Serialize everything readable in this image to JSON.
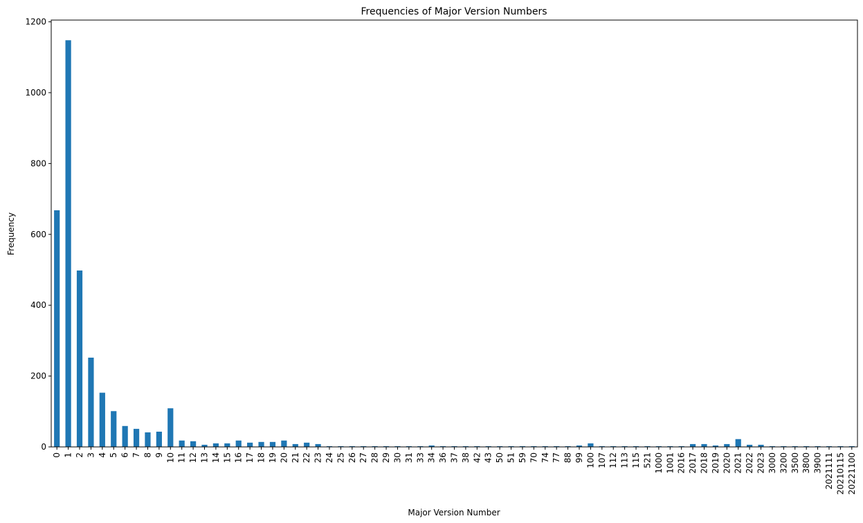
{
  "chart_data": {
    "type": "bar",
    "title": "Frequencies of Major Version Numbers",
    "xlabel": "Major Version Number",
    "ylabel": "Frequency",
    "ylim": [
      0,
      1205
    ],
    "yticks": [
      0,
      200,
      400,
      600,
      800,
      1000,
      1200
    ],
    "grid": false,
    "bar_color": "#1f77b4",
    "categories": [
      "0",
      "1",
      "2",
      "3",
      "4",
      "5",
      "6",
      "7",
      "8",
      "9",
      "10",
      "11",
      "12",
      "13",
      "14",
      "15",
      "16",
      "17",
      "18",
      "19",
      "20",
      "21",
      "22",
      "23",
      "24",
      "25",
      "26",
      "27",
      "28",
      "29",
      "30",
      "31",
      "33",
      "34",
      "36",
      "37",
      "38",
      "42",
      "43",
      "50",
      "51",
      "59",
      "70",
      "74",
      "77",
      "88",
      "99",
      "100",
      "107",
      "112",
      "113",
      "115",
      "521",
      "1000",
      "1001",
      "2016",
      "2017",
      "2018",
      "2019",
      "2020",
      "2021",
      "2022",
      "2023",
      "3000",
      "3200",
      "3500",
      "3800",
      "3900",
      "2021111",
      "20210115",
      "20221100"
    ],
    "values": [
      668,
      1148,
      498,
      252,
      153,
      101,
      59,
      51,
      41,
      43,
      109,
      18,
      16,
      6,
      10,
      10,
      18,
      12,
      14,
      14,
      18,
      8,
      12,
      8,
      2,
      2,
      2,
      2,
      2,
      2,
      2,
      2,
      2,
      4,
      2,
      2,
      2,
      2,
      2,
      2,
      2,
      2,
      2,
      2,
      2,
      2,
      4,
      10,
      2,
      2,
      2,
      2,
      2,
      2,
      2,
      2,
      8,
      8,
      4,
      8,
      22,
      6,
      6,
      2,
      2,
      2,
      2,
      2,
      2,
      2,
      2
    ]
  }
}
